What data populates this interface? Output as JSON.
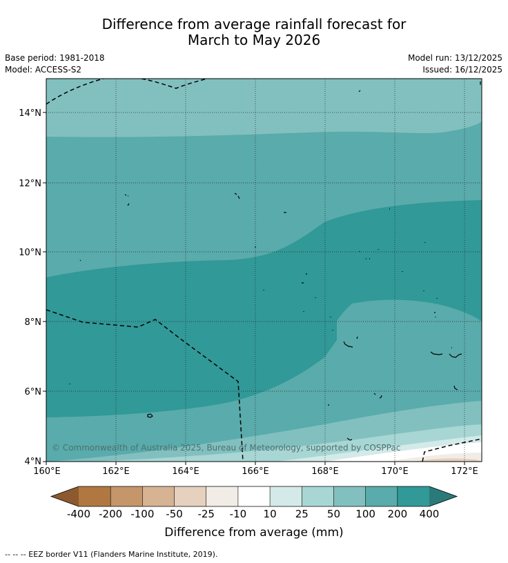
{
  "header": {
    "title_line1": "Difference from average rainfall forecast for",
    "title_line2": "March to May 2026",
    "base_period": "Base period: 1981-2018",
    "model": "Model: ACCESS-S2",
    "model_run": "Model run: 13/12/2025",
    "issued": "Issued: 16/12/2025"
  },
  "map": {
    "type": "filled contour map",
    "lat_ticks": [
      "4°N",
      "6°N",
      "8°N",
      "10°N",
      "12°N",
      "14°N"
    ],
    "lon_ticks": [
      "160°E",
      "162°E",
      "164°E",
      "166°E",
      "168°E",
      "170°E",
      "172°E"
    ],
    "lat_range": [
      4,
      15
    ],
    "lon_range": [
      160,
      172.5
    ],
    "gridlines": "dotted",
    "copyright": "© Commonwealth of Australia 2025, Bureau of Meteorology, supported by COSPPac"
  },
  "colorbar": {
    "ticks": [
      "-400",
      "-200",
      "-100",
      "-50",
      "-25",
      "-10",
      "10",
      "25",
      "50",
      "100",
      "200",
      "400"
    ],
    "colors": [
      "#8c5a2e",
      "#b07840",
      "#c4966a",
      "#d6b393",
      "#e6d0be",
      "#f2ece7",
      "#ffffff",
      "#d3eae8",
      "#a8d6d4",
      "#82c0bf",
      "#5aabab",
      "#319998",
      "#2a7a7a"
    ],
    "label": "Difference from average (mm)"
  },
  "footer": {
    "eez_note": "--  --  -- EEZ border V11 (Flanders Marine Institute, 2019)."
  }
}
